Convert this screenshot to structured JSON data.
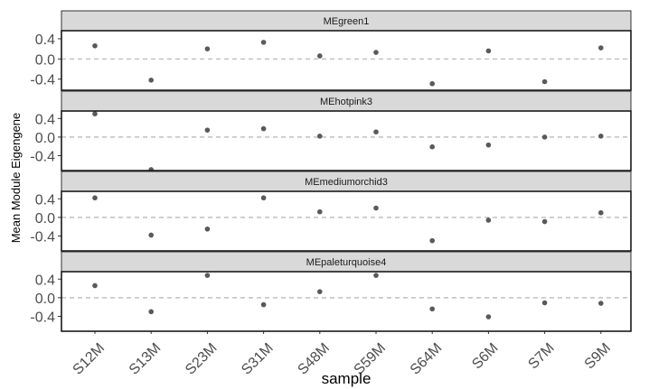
{
  "chart_data": {
    "type": "scatter",
    "xlabel": "sample",
    "ylabel": "Mean Module Eigengene",
    "categories": [
      "S12M",
      "S13M",
      "S23M",
      "S31M",
      "S48M",
      "S59M",
      "S64M",
      "S6M",
      "S7M",
      "S9M"
    ],
    "y_ticks": [
      "0.4",
      "0.0",
      "-0.4"
    ],
    "y_tick_values": [
      0.4,
      0.0,
      -0.4
    ],
    "reference_line": 0,
    "point_color": "#595959",
    "strip_fill": "#d9d9d9",
    "panels": [
      {
        "name": "MEgreen1",
        "ylim": [
          -0.62,
          0.56
        ],
        "values": [
          0.26,
          -0.42,
          0.2,
          0.33,
          0.06,
          0.13,
          -0.49,
          0.16,
          -0.45,
          0.22
        ]
      },
      {
        "name": "MEhotpink3",
        "ylim": [
          -0.72,
          0.56
        ],
        "values": [
          0.5,
          -0.7,
          0.15,
          0.18,
          0.02,
          0.11,
          -0.21,
          -0.17,
          0.0,
          0.02
        ]
      },
      {
        "name": "MEmediumorchid3",
        "ylim": [
          -0.72,
          0.56
        ],
        "values": [
          0.42,
          -0.38,
          -0.25,
          0.42,
          0.12,
          0.2,
          -0.5,
          -0.06,
          -0.09,
          0.1
        ]
      },
      {
        "name": "MEpaleturquoise4",
        "ylim": [
          -0.72,
          0.56
        ],
        "values": [
          0.26,
          -0.3,
          0.48,
          -0.15,
          0.13,
          0.48,
          -0.24,
          -0.41,
          -0.11,
          -0.12
        ]
      }
    ]
  }
}
